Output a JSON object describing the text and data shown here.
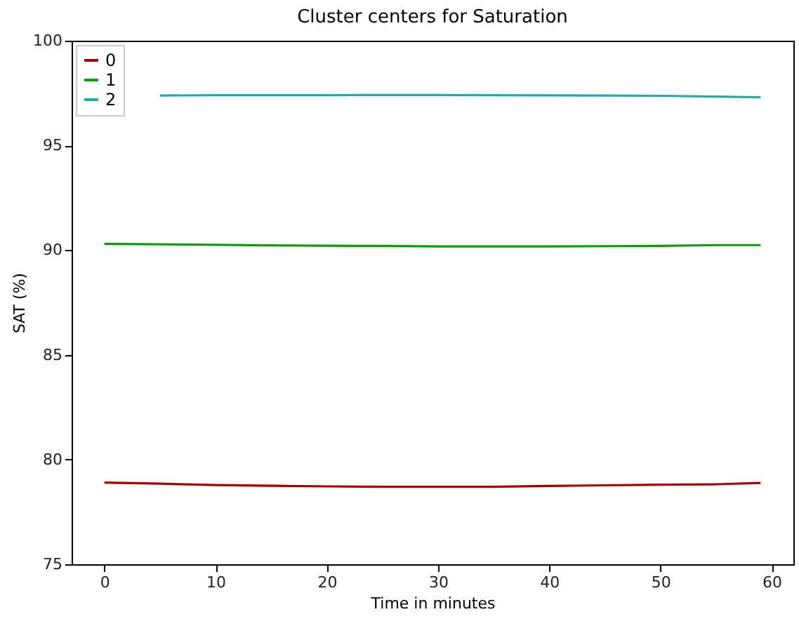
{
  "chart_data": {
    "type": "line",
    "title": "Cluster centers for Saturation",
    "xlabel": "Time in minutes",
    "ylabel": "SAT (%)",
    "x": [
      0,
      5,
      10,
      15,
      20,
      25,
      30,
      35,
      40,
      45,
      50,
      55,
      59
    ],
    "series": [
      {
        "name": "0",
        "color": "#a00000",
        "values": [
          78.9,
          78.85,
          78.78,
          78.75,
          78.72,
          78.7,
          78.7,
          78.7,
          78.74,
          78.77,
          78.8,
          78.82,
          78.88
        ]
      },
      {
        "name": "1",
        "color": "#119911",
        "values": [
          90.3,
          90.28,
          90.25,
          90.23,
          90.21,
          90.2,
          90.18,
          90.18,
          90.18,
          90.19,
          90.2,
          90.24,
          90.24
        ]
      },
      {
        "name": "2",
        "color": "#2aa8a5",
        "values": [
          null,
          97.38,
          97.4,
          97.4,
          97.4,
          97.41,
          97.41,
          97.4,
          97.39,
          97.38,
          97.37,
          97.33,
          97.3
        ]
      }
    ],
    "xlim": [
      -2.95,
      61.95
    ],
    "xticks": [
      0,
      10,
      20,
      30,
      40,
      50,
      60
    ],
    "ylim": [
      75,
      100
    ],
    "yticks": [
      75,
      80,
      85,
      90,
      95,
      100
    ],
    "grid": false,
    "legend": "top left"
  }
}
